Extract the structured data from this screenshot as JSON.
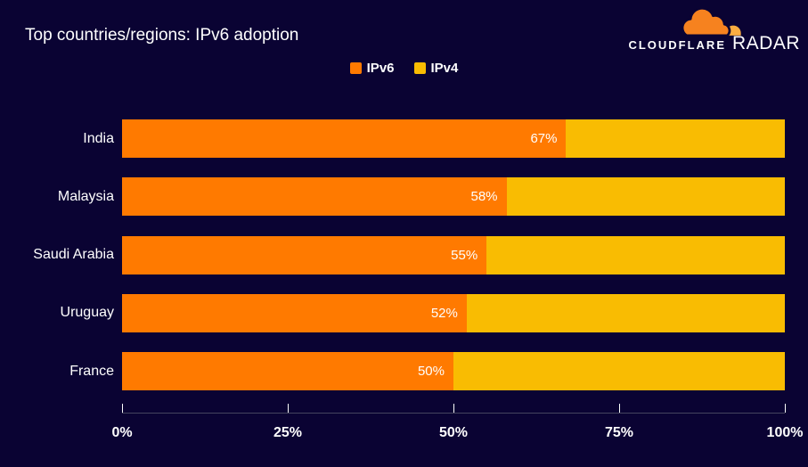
{
  "header": {
    "title": "Top countries/regions: IPv6 adoption"
  },
  "logo": {
    "brand": "CLOUDFLARE",
    "product": "RADAR"
  },
  "legend": {
    "items": [
      {
        "label": "IPv6",
        "color": "#FF7A00"
      },
      {
        "label": "IPv4",
        "color": "#F9BC02"
      }
    ]
  },
  "colors": {
    "background": "#0A0333",
    "ipv6": "#FF7A00",
    "ipv4": "#F9BC02",
    "axis_line": "#44445E",
    "text": "#FFFFFF",
    "logo_orange": "#F6821F",
    "logo_light_orange": "#FBAD41"
  },
  "chart_data": {
    "type": "bar",
    "orientation": "horizontal",
    "stacked": true,
    "title": "Top countries/regions: IPv6 adoption",
    "categories": [
      "India",
      "Malaysia",
      "Saudi Arabia",
      "Uruguay",
      "France"
    ],
    "series": [
      {
        "name": "IPv6",
        "color": "#FF7A00",
        "values": [
          67,
          58,
          55,
          52,
          50
        ],
        "labels": [
          "67%",
          "58%",
          "55%",
          "52%",
          "50%"
        ]
      },
      {
        "name": "IPv4",
        "color": "#F9BC02",
        "values": [
          33,
          42,
          45,
          48,
          50
        ]
      }
    ],
    "x_ticks": [
      "0%",
      "25%",
      "50%",
      "75%",
      "100%"
    ],
    "xlim": [
      0,
      100
    ],
    "grid": false,
    "legend_position": "top-center",
    "value_label_position": "inside-end-of-ipv6-segment"
  }
}
